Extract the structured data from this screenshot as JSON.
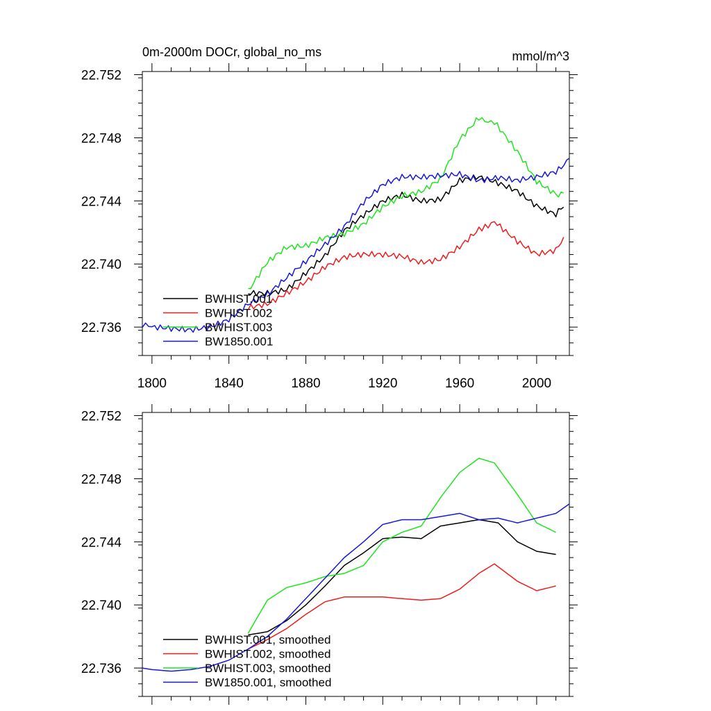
{
  "colors": {
    "black": "#000000",
    "red": "#ee1c1c",
    "green": "#1ee51e",
    "blue": "#1818d8"
  },
  "chart_data": [
    {
      "type": "line",
      "title": "0m-2000m DOCr, global_no_ms",
      "units": "mmol/m^3",
      "xlim": [
        1795,
        2017
      ],
      "ylim": [
        22.7342,
        22.7522
      ],
      "x_ticks": [
        1800,
        1840,
        1880,
        1920,
        1960,
        2000
      ],
      "x_tick_labels": [
        "1800",
        "1840",
        "1880",
        "1920",
        "1960",
        "2000"
      ],
      "show_x_tick_labels": true,
      "y_ticks": [
        22.736,
        22.74,
        22.744,
        22.748,
        22.752
      ],
      "y_tick_labels": [
        "22.736",
        "22.740",
        "22.744",
        "22.748",
        "22.752"
      ],
      "legend_position": "bottom-left",
      "smoothed": false,
      "series": [
        {
          "name": "BWHIST.001",
          "color": "#000000",
          "x": [
            1850,
            1860,
            1870,
            1880,
            1890,
            1900,
            1910,
            1920,
            1930,
            1940,
            1950,
            1960,
            1970,
            1980,
            1990,
            2000,
            2010,
            2014
          ],
          "y": [
            22.7381,
            22.7382,
            22.7385,
            22.7395,
            22.7405,
            22.742,
            22.743,
            22.744,
            22.7445,
            22.7441,
            22.7441,
            22.7452,
            22.7454,
            22.7451,
            22.7447,
            22.7438,
            22.7432,
            22.7436
          ]
        },
        {
          "name": "BWHIST.002",
          "color": "#ee1c1c",
          "x": [
            1850,
            1860,
            1870,
            1880,
            1890,
            1900,
            1910,
            1920,
            1930,
            1940,
            1950,
            1960,
            1970,
            1978,
            1990,
            2000,
            2010,
            2014
          ],
          "y": [
            22.7371,
            22.7374,
            22.7382,
            22.739,
            22.7399,
            22.7404,
            22.7405,
            22.7405,
            22.7405,
            22.7402,
            22.7404,
            22.7411,
            22.7421,
            22.7428,
            22.7414,
            22.7407,
            22.741,
            22.7417
          ]
        },
        {
          "name": "BWHIST.003",
          "color": "#1ee51e",
          "x": [
            1850,
            1860,
            1870,
            1880,
            1890,
            1900,
            1910,
            1920,
            1930,
            1940,
            1950,
            1960,
            1970,
            1978,
            1990,
            2000,
            2010,
            2014
          ],
          "y": [
            22.7382,
            22.74,
            22.741,
            22.7412,
            22.7418,
            22.742,
            22.7425,
            22.7435,
            22.7442,
            22.7446,
            22.7455,
            22.748,
            22.7493,
            22.749,
            22.747,
            22.7452,
            22.7445,
            22.7445
          ]
        },
        {
          "name": "BW1850.001",
          "color": "#1818d8",
          "x": [
            1795,
            1800,
            1810,
            1820,
            1830,
            1840,
            1850,
            1860,
            1870,
            1880,
            1890,
            1900,
            1910,
            1920,
            1930,
            1940,
            1950,
            1960,
            1970,
            1980,
            1990,
            2000,
            2010,
            2017
          ],
          "y": [
            22.7362,
            22.7359,
            22.7358,
            22.7358,
            22.7361,
            22.7366,
            22.7375,
            22.738,
            22.739,
            22.7401,
            22.7413,
            22.7425,
            22.744,
            22.745,
            22.7454,
            22.7454,
            22.7456,
            22.7458,
            22.7454,
            22.7455,
            22.7452,
            22.7454,
            22.7458,
            22.7467
          ]
        }
      ]
    },
    {
      "type": "line",
      "title": "",
      "units": "",
      "xlim": [
        1795,
        2017
      ],
      "ylim": [
        22.7342,
        22.7522
      ],
      "x_ticks": [
        1800,
        1840,
        1880,
        1920,
        1960,
        2000
      ],
      "x_tick_labels": [],
      "show_x_tick_labels": false,
      "y_ticks": [
        22.736,
        22.74,
        22.744,
        22.748,
        22.752
      ],
      "y_tick_labels": [
        "22.736",
        "22.740",
        "22.744",
        "22.748",
        "22.752"
      ],
      "legend_position": "bottom-left",
      "smoothed": true,
      "series": [
        {
          "name": "BWHIST.001, smoothed",
          "color": "#000000",
          "x": [
            1850,
            1860,
            1870,
            1880,
            1890,
            1900,
            1910,
            1920,
            1930,
            1940,
            1950,
            1960,
            1970,
            1980,
            1990,
            2000,
            2010
          ],
          "y": [
            22.7381,
            22.7383,
            22.739,
            22.74,
            22.7412,
            22.7425,
            22.7433,
            22.7442,
            22.7443,
            22.7442,
            22.745,
            22.7452,
            22.7454,
            22.7452,
            22.744,
            22.7434,
            22.7432
          ]
        },
        {
          "name": "BWHIST.002, smoothed",
          "color": "#ee1c1c",
          "x": [
            1850,
            1860,
            1870,
            1880,
            1890,
            1900,
            1910,
            1920,
            1930,
            1940,
            1950,
            1960,
            1970,
            1978,
            1990,
            2000,
            2010
          ],
          "y": [
            22.7372,
            22.7378,
            22.7385,
            22.7394,
            22.7402,
            22.7405,
            22.7405,
            22.7405,
            22.7404,
            22.7403,
            22.7404,
            22.741,
            22.742,
            22.7426,
            22.7415,
            22.7409,
            22.7412
          ]
        },
        {
          "name": "BWHIST.003, smoothed",
          "color": "#1ee51e",
          "x": [
            1850,
            1860,
            1870,
            1880,
            1890,
            1900,
            1910,
            1920,
            1930,
            1940,
            1950,
            1960,
            1970,
            1978,
            1990,
            2000,
            2010
          ],
          "y": [
            22.7382,
            22.7403,
            22.7411,
            22.7414,
            22.7418,
            22.742,
            22.7425,
            22.744,
            22.7446,
            22.745,
            22.7468,
            22.7484,
            22.7493,
            22.749,
            22.747,
            22.7452,
            22.7446
          ]
        },
        {
          "name": "BW1850.001, smoothed",
          "color": "#1818d8",
          "x": [
            1795,
            1800,
            1810,
            1820,
            1830,
            1840,
            1850,
            1860,
            1870,
            1880,
            1890,
            1900,
            1910,
            1920,
            1930,
            1940,
            1950,
            1960,
            1970,
            1980,
            1990,
            2000,
            2010,
            2017
          ],
          "y": [
            22.736,
            22.7359,
            22.7358,
            22.7359,
            22.7361,
            22.7365,
            22.7372,
            22.738,
            22.7391,
            22.7404,
            22.7417,
            22.743,
            22.744,
            22.7451,
            22.7454,
            22.7454,
            22.7456,
            22.7458,
            22.7454,
            22.7455,
            22.7452,
            22.7455,
            22.7458,
            22.7464
          ]
        }
      ]
    }
  ]
}
